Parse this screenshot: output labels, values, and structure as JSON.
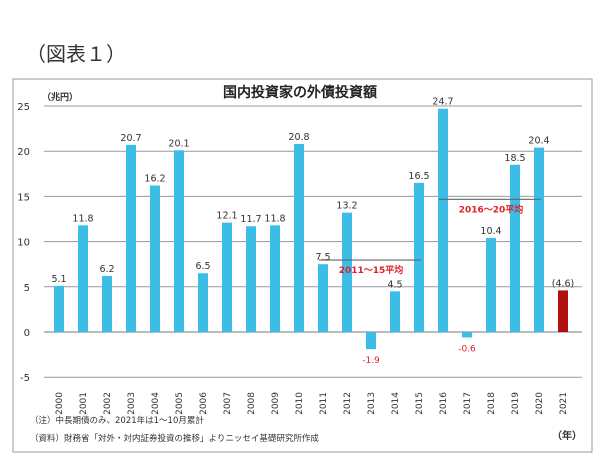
{
  "figure_label": "（図表１）",
  "chart_data": {
    "type": "bar",
    "title": "国内投資家の外債投資額",
    "ylabel": "（兆円）",
    "xlabel": "（年）",
    "ylim": [
      -5,
      25
    ],
    "yticks": [
      -5,
      0,
      5,
      10,
      15,
      20,
      25
    ],
    "grid": true,
    "categories": [
      "2000",
      "2001",
      "2002",
      "2003",
      "2004",
      "2005",
      "2006",
      "2007",
      "2008",
      "2009",
      "2010",
      "2011",
      "2012",
      "2013",
      "2014",
      "2015",
      "2016",
      "2017",
      "2018",
      "2019",
      "2020",
      "2021"
    ],
    "values": [
      5.1,
      11.8,
      6.2,
      20.7,
      16.2,
      20.1,
      6.5,
      12.1,
      11.7,
      11.8,
      20.8,
      7.5,
      13.2,
      -1.9,
      4.5,
      16.5,
      24.7,
      -0.6,
      10.4,
      18.5,
      20.4,
      4.6
    ],
    "data_labels": [
      "5.1",
      "11.8",
      "6.2",
      "20.7",
      "16.2",
      "20.1",
      "6.5",
      "12.1",
      "11.7",
      "11.8",
      "20.8",
      "7.5",
      "13.2",
      "-1.9",
      "4.5",
      "16.5",
      "24.7",
      "-0.6",
      "10.4",
      "18.5",
      "20.4",
      "(4.6)"
    ],
    "colors": {
      "bar": "#3cbde8",
      "highlight": "#b01010",
      "average_label": "#e0202a",
      "negative_label": "#e0202a"
    },
    "highlight_index": 21,
    "averages": [
      {
        "label": "2011～15平均",
        "from": "2011",
        "to": "2015",
        "value": 7.96
      },
      {
        "label": "2016～20平均",
        "from": "2016",
        "to": "2020",
        "value": 14.68
      }
    ],
    "notes": [
      "（注）中長期債のみ、2021年は1～10月累計",
      "（資料）財務省「対外・対内証券投資の推移」よりニッセイ基礎研究所作成"
    ]
  }
}
